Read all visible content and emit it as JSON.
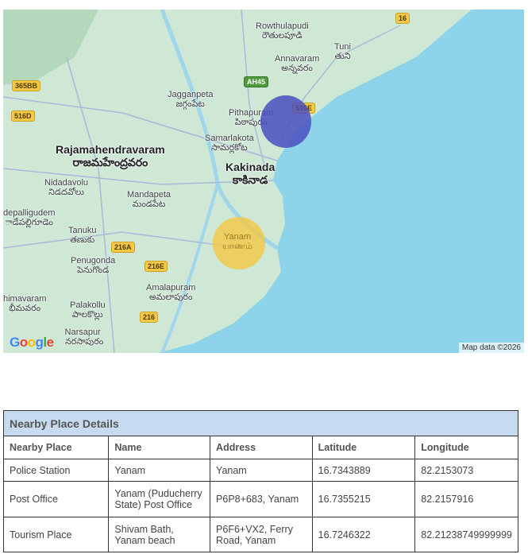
{
  "map": {
    "labels": [
      {
        "en": "Rowthulapudi",
        "te": "రౌతులపూడి"
      },
      {
        "en": "Tuni",
        "te": "తుని"
      },
      {
        "en": "Annavaram",
        "te": "అన్నవరం"
      },
      {
        "en": "Jagganpeta",
        "te": "జగ్గంపేట"
      },
      {
        "en": "Pithapuram",
        "te": "పిఠాపురం"
      },
      {
        "en": "Samarlakota",
        "te": "సామర్లకోట"
      },
      {
        "en": "Rajamahendravaram",
        "te": "రాజమహేంద్రవరం"
      },
      {
        "en": "Kakinada",
        "te": "కాకినాడ"
      },
      {
        "en": "Nidadavolu",
        "te": "నిడదవోలు"
      },
      {
        "en": "Mandapeta",
        "te": "మండపేట"
      },
      {
        "en": "depalligudem",
        "te": "ాడేపల్లిగూడెం"
      },
      {
        "en": "Tanuku",
        "te": "తణుకు"
      },
      {
        "en": "Yanam",
        "te": "யாணம்"
      },
      {
        "en": "Penugonda",
        "te": "పెనుగొండ"
      },
      {
        "en": "Amalapuram",
        "te": "అమలాపురం"
      },
      {
        "en": "himavaram",
        "te": "భీమవరం"
      },
      {
        "en": "Palakollu",
        "te": "పాలకొల్లు"
      },
      {
        "en": "Narsapur",
        "te": "నరసాపురం"
      }
    ],
    "shields": [
      "16",
      "365BB",
      "516D",
      "AH45",
      "516E",
      "216A",
      "216E",
      "216"
    ],
    "circles": [
      {
        "color": "#4a4fc0",
        "label": "Pithapuram area"
      },
      {
        "color": "#f2c744",
        "label": "Yanam area"
      }
    ],
    "logo": "Google",
    "attribution": "Map data ©2026",
    "colors": {
      "land": "#cfe8d6",
      "sea": "#8dd3ea"
    }
  },
  "table": {
    "title": "Nearby Place Details",
    "headers": [
      "Nearby Place",
      "Name",
      "Address",
      "Latitude",
      "Longitude"
    ],
    "rows": [
      [
        "Police Station",
        "Yanam",
        "Yanam",
        "16.7343889",
        "82.2153073"
      ],
      [
        "Post Office",
        "Yanam (Puducherry State) Post Office",
        "P6P8+683, Yanam",
        "16.7355215",
        "82.2157916"
      ],
      [
        "Tourism Place",
        "Shivam Bath, Yanam beach",
        "P6F6+VX2, Ferry Road, Yanam",
        "16.7246322",
        "82.21238749999999"
      ]
    ]
  }
}
